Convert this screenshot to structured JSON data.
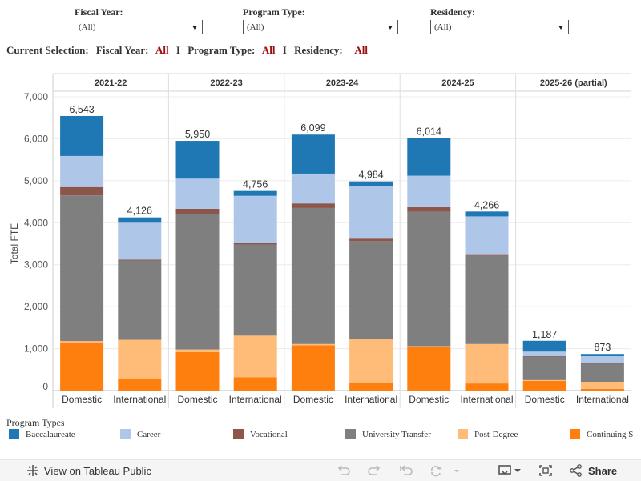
{
  "filters": {
    "fiscal_year": {
      "label": "Fiscal Year:",
      "value": "(All)"
    },
    "program_type": {
      "label": "Program Type:",
      "value": "(All)"
    },
    "residency": {
      "label": "Residency:",
      "value": "(All)"
    }
  },
  "current_selection": {
    "prefix": "Current Selection:",
    "fy_label": "Fiscal Year:",
    "fy_value": "All",
    "pt_label": "Program Type:",
    "pt_value": "All",
    "res_label": "Residency:",
    "res_value": "All",
    "separator": "I"
  },
  "legend": {
    "title": "Program Types",
    "items": [
      {
        "label": "Baccalaureate",
        "color": "#1f77b4"
      },
      {
        "label": "Career",
        "color": "#aec7e8"
      },
      {
        "label": "Vocational",
        "color": "#8c564b"
      },
      {
        "label": "University Transfer",
        "color": "#7f7f7f"
      },
      {
        "label": "Post-Degree",
        "color": "#ffbb78"
      },
      {
        "label": "Continuing S",
        "color": "#ff7f0e"
      }
    ]
  },
  "toolbar": {
    "view_label": "View on Tableau Public",
    "share_label": "Share"
  },
  "chart_data": {
    "type": "bar",
    "stacked": true,
    "ylabel": "Total FTE",
    "ylim": [
      0,
      7000
    ],
    "yticks": [
      0,
      1000,
      2000,
      3000,
      4000,
      5000,
      6000,
      7000
    ],
    "ytick_labels": [
      "0",
      "1,000",
      "2,000",
      "3,000",
      "4,000",
      "5,000",
      "6,000",
      "7,000"
    ],
    "stack_order": [
      "Continuing S",
      "Post-Degree",
      "University Transfer",
      "Vocational",
      "Career",
      "Baccalaureate"
    ],
    "panels": [
      {
        "header": "2021-22",
        "bars": [
          {
            "category": "Domestic",
            "total_label": "6,543",
            "values": [
              1150,
              30,
              3470,
              200,
              740,
              953
            ]
          },
          {
            "category": "International",
            "total_label": "4,126",
            "values": [
              280,
              930,
              1890,
              20,
              880,
              126
            ]
          }
        ]
      },
      {
        "header": "2022-23",
        "bars": [
          {
            "category": "Domestic",
            "total_label": "5,950",
            "values": [
              920,
              60,
              3220,
              130,
              720,
              900
            ]
          },
          {
            "category": "International",
            "total_label": "4,756",
            "values": [
              320,
              990,
              2170,
              40,
              1120,
              116
            ]
          }
        ]
      },
      {
        "header": "2023-24",
        "bars": [
          {
            "category": "Domestic",
            "total_label": "6,099",
            "values": [
              1080,
              30,
              3240,
              110,
              710,
              929
            ]
          },
          {
            "category": "International",
            "total_label": "4,984",
            "values": [
              190,
              1030,
              2340,
              60,
              1250,
              114
            ]
          }
        ]
      },
      {
        "header": "2024-25",
        "bars": [
          {
            "category": "Domestic",
            "total_label": "6,014",
            "values": [
              1030,
              30,
              3200,
              110,
              750,
              894
            ]
          },
          {
            "category": "International",
            "total_label": "4,266",
            "values": [
              170,
              940,
              2100,
              40,
              900,
              116
            ]
          }
        ]
      },
      {
        "header": "2025-26 (partial)",
        "bars": [
          {
            "category": "Domestic",
            "total_label": "1,187",
            "values": [
              230,
              20,
              560,
              10,
              110,
              257
            ]
          },
          {
            "category": "International",
            "total_label": "873",
            "values": [
              40,
              170,
              430,
              10,
              170,
              53
            ]
          }
        ]
      }
    ]
  }
}
